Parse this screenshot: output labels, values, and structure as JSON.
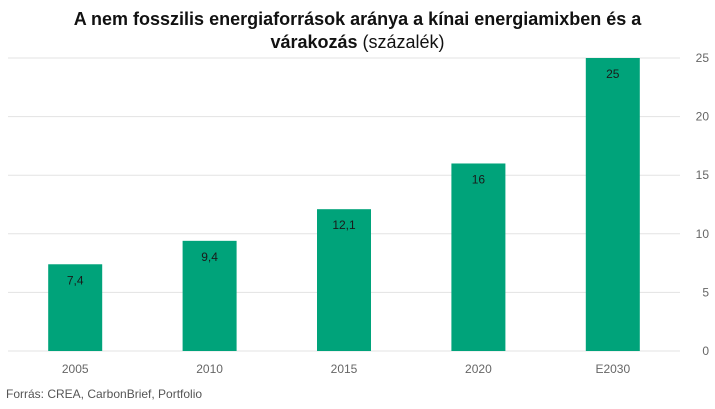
{
  "title_line1": "A nem fosszilis energiaforrások aránya a kínai energiamixben és a",
  "title_line2_bold": "várakozás",
  "title_line2_normal": "(százalék)",
  "source": "Forrás: CREA, CarbonBrief,  Portfolio",
  "colors": {
    "bar": "#00a37a",
    "grid": "#e3e3e3",
    "axis_text": "#666666"
  },
  "chart_data": {
    "type": "bar",
    "title": "A nem fosszilis energiaforrások aránya a kínai energiamixben és a várakozás (százalék)",
    "categories": [
      "2005",
      "2010",
      "2015",
      "2020",
      "E2030"
    ],
    "values": [
      7.4,
      9.4,
      12.1,
      16,
      25
    ],
    "value_labels": [
      "7,4",
      "9,4",
      "12,1",
      "16",
      "25"
    ],
    "ylim": [
      0,
      25
    ],
    "yticks": [
      0,
      5,
      10,
      15,
      20,
      25
    ],
    "y_axis_side": "right",
    "grid": true,
    "legend": false
  }
}
